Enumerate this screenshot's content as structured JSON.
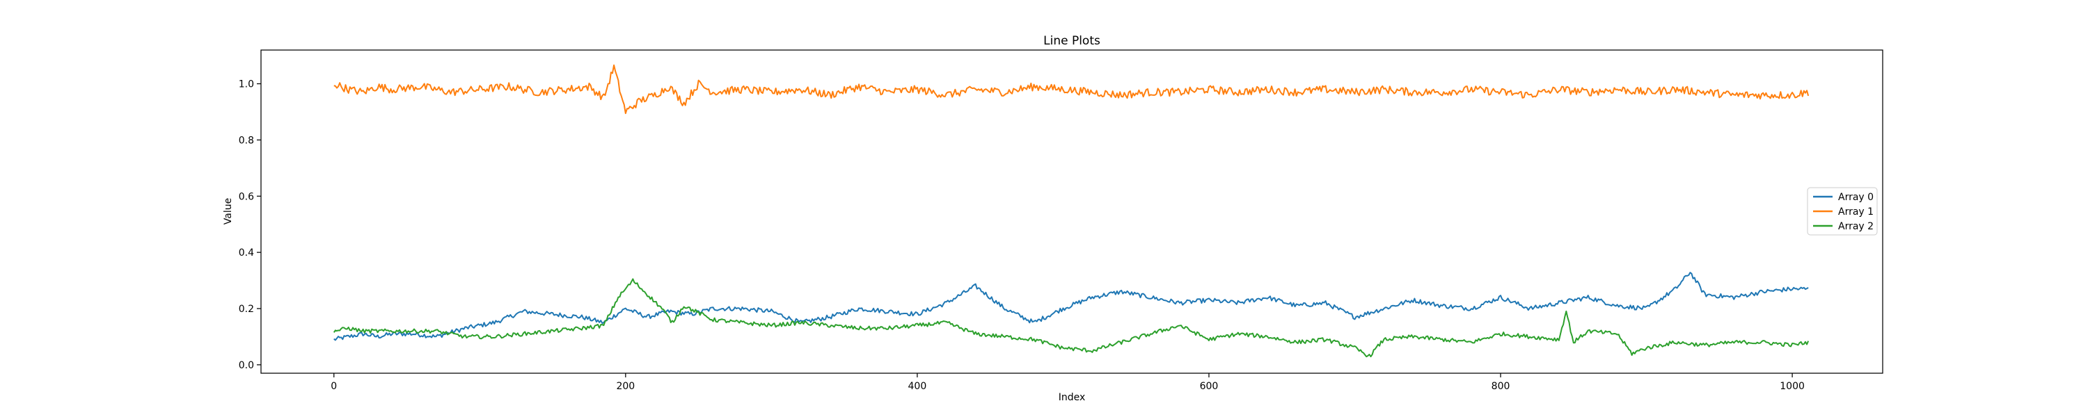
{
  "chart_data": {
    "type": "line",
    "title": "Line Plots",
    "xlabel": "Index",
    "ylabel": "Value",
    "xlim": [
      -50,
      1062
    ],
    "ylim": [
      -0.03,
      1.12
    ],
    "xticks": [
      0,
      200,
      400,
      600,
      800,
      1000
    ],
    "yticks": [
      0.0,
      0.2,
      0.4,
      0.6,
      0.8,
      1.0
    ],
    "xtick_labels": [
      "0",
      "200",
      "400",
      "600",
      "800",
      "1000"
    ],
    "ytick_labels": [
      "0.0",
      "0.2",
      "0.4",
      "0.6",
      "0.8",
      "1.0"
    ],
    "grid": false,
    "legend_position": "right",
    "n_points": 1012,
    "series": [
      {
        "name": "Array 0",
        "color": "#1f77b4",
        "x": [
          0,
          10,
          20,
          30,
          40,
          55,
          70,
          90,
          110,
          130,
          150,
          170,
          185,
          200,
          215,
          230,
          245,
          260,
          280,
          300,
          320,
          340,
          360,
          380,
          400,
          420,
          440,
          460,
          480,
          500,
          520,
          540,
          560,
          580,
          600,
          620,
          640,
          660,
          680,
          700,
          720,
          740,
          760,
          780,
          800,
          820,
          840,
          860,
          880,
          900,
          920,
          930,
          940,
          960,
          980,
          1000,
          1011
        ],
        "values": [
          0.09,
          0.1,
          0.11,
          0.1,
          0.11,
          0.11,
          0.1,
          0.13,
          0.15,
          0.19,
          0.18,
          0.17,
          0.15,
          0.2,
          0.17,
          0.19,
          0.18,
          0.2,
          0.2,
          0.19,
          0.15,
          0.17,
          0.2,
          0.19,
          0.18,
          0.22,
          0.28,
          0.2,
          0.15,
          0.2,
          0.24,
          0.26,
          0.24,
          0.22,
          0.23,
          0.22,
          0.24,
          0.21,
          0.22,
          0.17,
          0.2,
          0.23,
          0.21,
          0.2,
          0.24,
          0.2,
          0.22,
          0.24,
          0.21,
          0.2,
          0.27,
          0.33,
          0.25,
          0.24,
          0.26,
          0.27,
          0.27
        ]
      },
      {
        "name": "Array 1",
        "color": "#ff7f0e",
        "x": [
          0,
          10,
          20,
          30,
          40,
          60,
          80,
          100,
          120,
          140,
          160,
          175,
          185,
          192,
          200,
          210,
          220,
          230,
          240,
          250,
          260,
          280,
          300,
          320,
          340,
          360,
          380,
          400,
          420,
          440,
          460,
          480,
          500,
          520,
          540,
          560,
          580,
          600,
          620,
          640,
          660,
          680,
          700,
          720,
          740,
          760,
          780,
          800,
          820,
          840,
          860,
          880,
          900,
          920,
          940,
          960,
          980,
          1000,
          1011
        ],
        "values": [
          1.0,
          0.98,
          0.97,
          0.99,
          0.98,
          0.99,
          0.97,
          0.98,
          0.99,
          0.97,
          0.98,
          0.99,
          0.95,
          1.06,
          0.9,
          0.94,
          0.96,
          0.99,
          0.93,
          1.0,
          0.97,
          0.98,
          0.97,
          0.98,
          0.96,
          0.99,
          0.97,
          0.98,
          0.96,
          0.98,
          0.97,
          0.99,
          0.98,
          0.97,
          0.96,
          0.97,
          0.97,
          0.98,
          0.97,
          0.98,
          0.97,
          0.98,
          0.97,
          0.98,
          0.97,
          0.97,
          0.98,
          0.97,
          0.96,
          0.98,
          0.97,
          0.98,
          0.97,
          0.98,
          0.97,
          0.96,
          0.96,
          0.96,
          0.97
        ]
      },
      {
        "name": "Array 2",
        "color": "#2ca02c",
        "x": [
          0,
          10,
          20,
          30,
          50,
          70,
          90,
          110,
          130,
          150,
          170,
          185,
          195,
          205,
          215,
          225,
          232,
          240,
          260,
          280,
          300,
          320,
          340,
          360,
          380,
          400,
          420,
          440,
          460,
          480,
          500,
          520,
          540,
          560,
          580,
          600,
          620,
          640,
          660,
          680,
          700,
          710,
          720,
          740,
          760,
          780,
          800,
          820,
          840,
          845,
          850,
          860,
          880,
          890,
          900,
          920,
          940,
          960,
          980,
          1000,
          1011
        ],
        "values": [
          0.12,
          0.13,
          0.12,
          0.12,
          0.12,
          0.12,
          0.1,
          0.1,
          0.11,
          0.12,
          0.13,
          0.14,
          0.24,
          0.3,
          0.25,
          0.2,
          0.15,
          0.21,
          0.16,
          0.15,
          0.14,
          0.15,
          0.14,
          0.13,
          0.13,
          0.14,
          0.15,
          0.11,
          0.1,
          0.09,
          0.06,
          0.05,
          0.08,
          0.11,
          0.14,
          0.09,
          0.11,
          0.1,
          0.08,
          0.09,
          0.06,
          0.03,
          0.09,
          0.1,
          0.09,
          0.08,
          0.11,
          0.1,
          0.09,
          0.19,
          0.08,
          0.12,
          0.11,
          0.04,
          0.06,
          0.08,
          0.07,
          0.08,
          0.08,
          0.07,
          0.08
        ]
      }
    ]
  }
}
